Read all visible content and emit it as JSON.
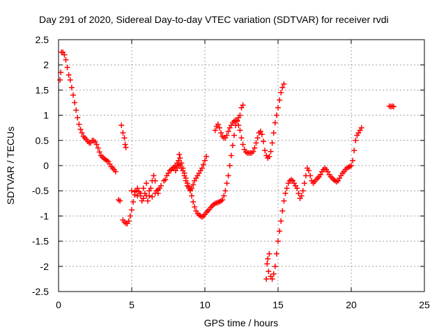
{
  "chart_data": {
    "type": "scatter",
    "title": "Day 291 of 2020, Sidereal Day-to-day VTEC variation (SDTVAR) for receiver rvdi",
    "xlabel": "GPS time / hours",
    "ylabel": "SDTVAR / TECUs",
    "xlim": [
      0,
      25
    ],
    "ylim": [
      -2.5,
      2.5
    ],
    "x_ticks": [
      0,
      5,
      10,
      15,
      20,
      25
    ],
    "y_ticks": [
      -2.5,
      -2,
      -1.5,
      -1,
      -0.5,
      0,
      0.5,
      1,
      1.5,
      2,
      2.5
    ],
    "x_tick_labels": [
      "0",
      "5",
      "10",
      "15",
      "20",
      "25"
    ],
    "y_tick_labels": [
      "-2.5",
      "-2",
      "-1.5",
      "-1",
      "-0.5",
      "0",
      "0.5",
      "1",
      "1.5",
      "2",
      "2.5"
    ],
    "grid": true,
    "marker": "+",
    "color": "#ff0000",
    "series": [
      {
        "points": [
          [
            0.1,
            1.7
          ],
          [
            0.15,
            1.85
          ],
          [
            0.2,
            2.25
          ],
          [
            0.3,
            2.25
          ],
          [
            0.4,
            2.2
          ],
          [
            0.5,
            2.1
          ],
          [
            0.6,
            1.95
          ],
          [
            0.7,
            1.8
          ],
          [
            0.8,
            1.7
          ],
          [
            0.9,
            1.55
          ],
          [
            1.0,
            1.4
          ],
          [
            1.1,
            1.25
          ],
          [
            1.2,
            1.1
          ],
          [
            1.3,
            0.95
          ],
          [
            1.4,
            0.82
          ],
          [
            1.5,
            0.72
          ],
          [
            1.6,
            0.65
          ],
          [
            1.7,
            0.58
          ],
          [
            1.8,
            0.55
          ],
          [
            1.9,
            0.52
          ],
          [
            2.0,
            0.48
          ],
          [
            2.1,
            0.45
          ],
          [
            2.2,
            0.45
          ],
          [
            2.3,
            0.5
          ],
          [
            2.4,
            0.5
          ],
          [
            2.5,
            0.47
          ],
          [
            2.6,
            0.42
          ],
          [
            2.7,
            0.35
          ],
          [
            2.8,
            0.27
          ],
          [
            2.9,
            0.2
          ],
          [
            3.0,
            0.17
          ],
          [
            3.1,
            0.14
          ],
          [
            3.2,
            0.12
          ],
          [
            3.3,
            0.1
          ],
          [
            3.4,
            0.08
          ],
          [
            3.5,
            0.03
          ],
          [
            3.6,
            -0.02
          ],
          [
            3.7,
            -0.05
          ],
          [
            3.8,
            -0.08
          ],
          [
            3.9,
            -0.12
          ],
          [
            4.1,
            -0.68
          ],
          [
            4.2,
            -0.7
          ],
          [
            4.3,
            0.8
          ],
          [
            4.4,
            0.65
          ],
          [
            4.5,
            0.55
          ],
          [
            4.55,
            0.42
          ],
          [
            4.6,
            0.36
          ],
          [
            4.4,
            -1.08
          ],
          [
            4.5,
            -1.12
          ],
          [
            4.6,
            -1.15
          ],
          [
            4.7,
            -1.15
          ],
          [
            4.8,
            -1.1
          ],
          [
            4.9,
            -1.0
          ],
          [
            5.0,
            -0.88
          ],
          [
            5.1,
            -0.72
          ],
          [
            5.2,
            -0.58
          ],
          [
            5.3,
            -0.5
          ],
          [
            5.4,
            -0.45
          ],
          [
            5.5,
            -0.52
          ],
          [
            5.6,
            -0.6
          ],
          [
            5.7,
            -0.7
          ],
          [
            5.8,
            -0.65
          ],
          [
            5.9,
            -0.55
          ],
          [
            6.0,
            -0.6
          ],
          [
            6.1,
            -0.7
          ],
          [
            6.2,
            -0.6
          ],
          [
            6.3,
            -0.45
          ],
          [
            6.4,
            -0.3
          ],
          [
            6.5,
            -0.2
          ],
          [
            6.6,
            -0.3
          ],
          [
            6.7,
            -0.5
          ],
          [
            6.8,
            -0.55
          ],
          [
            6.9,
            -0.45
          ],
          [
            7.0,
            -0.4
          ],
          [
            5.0,
            -0.5
          ],
          [
            5.2,
            -0.52
          ],
          [
            5.4,
            -0.6
          ],
          [
            5.6,
            -0.55
          ],
          [
            5.8,
            -0.45
          ],
          [
            6.0,
            -0.35
          ],
          [
            6.2,
            -0.5
          ],
          [
            6.4,
            -0.62
          ],
          [
            6.6,
            -0.55
          ],
          [
            6.8,
            -0.48
          ],
          [
            7.2,
            -0.3
          ],
          [
            7.3,
            -0.28
          ],
          [
            7.4,
            -0.2
          ],
          [
            7.5,
            -0.15
          ],
          [
            7.6,
            -0.1
          ],
          [
            7.7,
            -0.08
          ],
          [
            7.8,
            -0.05
          ],
          [
            7.9,
            -0.03
          ],
          [
            8.0,
            0.0
          ],
          [
            8.1,
            0.05
          ],
          [
            8.2,
            0.1
          ],
          [
            8.25,
            0.22
          ],
          [
            8.3,
            0.15
          ],
          [
            8.4,
            0.05
          ],
          [
            8.5,
            -0.05
          ],
          [
            8.6,
            -0.15
          ],
          [
            8.7,
            -0.25
          ],
          [
            8.8,
            -0.35
          ],
          [
            8.9,
            -0.42
          ],
          [
            9.0,
            -0.5
          ],
          [
            9.1,
            -0.6
          ],
          [
            9.2,
            -0.72
          ],
          [
            9.3,
            -0.82
          ],
          [
            9.4,
            -0.9
          ],
          [
            9.5,
            -0.95
          ],
          [
            9.6,
            -0.98
          ],
          [
            9.7,
            -1.0
          ],
          [
            9.8,
            -1.02
          ],
          [
            9.9,
            -1.0
          ],
          [
            10.0,
            -0.97
          ],
          [
            10.1,
            -0.93
          ],
          [
            10.2,
            -0.9
          ],
          [
            10.3,
            -0.87
          ],
          [
            10.4,
            -0.83
          ],
          [
            10.5,
            -0.8
          ],
          [
            10.6,
            -0.77
          ],
          [
            10.7,
            -0.75
          ],
          [
            10.8,
            -0.74
          ],
          [
            10.9,
            -0.73
          ],
          [
            11.0,
            -0.72
          ],
          [
            11.1,
            -0.7
          ],
          [
            11.2,
            -0.68
          ],
          [
            11.3,
            -0.6
          ],
          [
            11.4,
            -0.5
          ],
          [
            11.5,
            -0.35
          ],
          [
            11.6,
            -0.2
          ],
          [
            11.7,
            0.0
          ],
          [
            11.8,
            0.2
          ],
          [
            11.9,
            0.4
          ],
          [
            12.0,
            0.6
          ],
          [
            12.1,
            0.8
          ],
          [
            12.2,
            0.9
          ],
          [
            12.3,
            0.95
          ],
          [
            12.4,
            1.0
          ],
          [
            12.5,
            1.15
          ],
          [
            12.6,
            1.2
          ],
          [
            8.0,
            -0.1
          ],
          [
            8.1,
            -0.05
          ],
          [
            8.2,
            0.0
          ],
          [
            8.3,
            0.02
          ],
          [
            8.4,
            -0.05
          ],
          [
            8.5,
            -0.1
          ],
          [
            8.6,
            -0.2
          ],
          [
            8.7,
            -0.3
          ],
          [
            8.8,
            -0.4
          ],
          [
            8.9,
            -0.45
          ],
          [
            9.0,
            -0.48
          ],
          [
            9.1,
            -0.45
          ],
          [
            9.2,
            -0.38
          ],
          [
            9.3,
            -0.3
          ],
          [
            9.4,
            -0.25
          ],
          [
            9.5,
            -0.2
          ],
          [
            9.6,
            -0.15
          ],
          [
            9.7,
            -0.1
          ],
          [
            9.8,
            -0.05
          ],
          [
            9.9,
            0.02
          ],
          [
            10.0,
            0.1
          ],
          [
            10.1,
            0.18
          ],
          [
            10.7,
            0.7
          ],
          [
            10.8,
            0.78
          ],
          [
            10.9,
            0.82
          ],
          [
            11.0,
            0.75
          ],
          [
            11.1,
            0.65
          ],
          [
            11.2,
            0.58
          ],
          [
            11.3,
            0.55
          ],
          [
            11.4,
            0.55
          ],
          [
            11.5,
            0.6
          ],
          [
            11.6,
            0.68
          ],
          [
            11.7,
            0.75
          ],
          [
            11.8,
            0.8
          ],
          [
            11.9,
            0.85
          ],
          [
            12.0,
            0.88
          ],
          [
            12.1,
            0.9
          ],
          [
            12.2,
            0.88
          ],
          [
            12.3,
            0.8
          ],
          [
            12.4,
            0.7
          ],
          [
            12.5,
            0.55
          ],
          [
            12.6,
            0.42
          ],
          [
            12.7,
            0.32
          ],
          [
            12.8,
            0.27
          ],
          [
            12.9,
            0.25
          ],
          [
            13.0,
            0.25
          ],
          [
            13.1,
            0.25
          ],
          [
            13.2,
            0.25
          ],
          [
            13.3,
            0.28
          ],
          [
            13.4,
            0.35
          ],
          [
            13.5,
            0.45
          ],
          [
            13.6,
            0.55
          ],
          [
            13.7,
            0.65
          ],
          [
            13.8,
            0.68
          ],
          [
            13.9,
            0.62
          ],
          [
            14.0,
            0.48
          ],
          [
            14.1,
            0.3
          ],
          [
            14.2,
            0.2
          ],
          [
            14.3,
            0.15
          ],
          [
            14.4,
            0.18
          ],
          [
            14.5,
            0.28
          ],
          [
            14.6,
            0.45
          ],
          [
            14.7,
            0.65
          ],
          [
            14.8,
            0.85
          ],
          [
            14.9,
            1.0
          ],
          [
            15.0,
            1.15
          ],
          [
            15.1,
            1.3
          ],
          [
            15.2,
            1.45
          ],
          [
            15.3,
            1.55
          ],
          [
            15.4,
            1.62
          ],
          [
            14.2,
            -2.25
          ],
          [
            14.25,
            -1.95
          ],
          [
            14.3,
            -1.85
          ],
          [
            14.35,
            -2.1
          ],
          [
            14.4,
            -1.75
          ],
          [
            14.5,
            -2.2
          ],
          [
            14.6,
            -2.25
          ],
          [
            14.7,
            -2.15
          ],
          [
            14.8,
            -2.0
          ],
          [
            14.9,
            -1.75
          ],
          [
            15.0,
            -1.5
          ],
          [
            15.1,
            -1.3
          ],
          [
            15.2,
            -1.1
          ],
          [
            15.3,
            -0.9
          ],
          [
            15.4,
            -0.7
          ],
          [
            15.5,
            -0.55
          ],
          [
            15.6,
            -0.45
          ],
          [
            15.7,
            -0.35
          ],
          [
            15.8,
            -0.3
          ],
          [
            15.9,
            -0.28
          ],
          [
            16.0,
            -0.3
          ],
          [
            16.1,
            -0.35
          ],
          [
            16.2,
            -0.4
          ],
          [
            16.3,
            -0.45
          ],
          [
            16.4,
            -0.55
          ],
          [
            16.5,
            -0.65
          ],
          [
            16.6,
            -0.6
          ],
          [
            16.7,
            -0.5
          ],
          [
            16.8,
            -0.35
          ],
          [
            16.9,
            -0.2
          ],
          [
            17.0,
            -0.05
          ],
          [
            17.1,
            -0.1
          ],
          [
            17.2,
            -0.2
          ],
          [
            17.3,
            -0.3
          ],
          [
            17.4,
            -0.35
          ],
          [
            17.5,
            -0.32
          ],
          [
            17.6,
            -0.28
          ],
          [
            17.7,
            -0.25
          ],
          [
            17.8,
            -0.22
          ],
          [
            17.9,
            -0.18
          ],
          [
            18.0,
            -0.12
          ],
          [
            18.1,
            -0.08
          ],
          [
            18.2,
            -0.05
          ],
          [
            18.3,
            -0.08
          ],
          [
            18.4,
            -0.12
          ],
          [
            18.5,
            -0.18
          ],
          [
            18.6,
            -0.22
          ],
          [
            18.7,
            -0.25
          ],
          [
            18.8,
            -0.28
          ],
          [
            18.9,
            -0.3
          ],
          [
            19.0,
            -0.32
          ],
          [
            19.1,
            -0.3
          ],
          [
            19.2,
            -0.25
          ],
          [
            19.3,
            -0.2
          ],
          [
            19.4,
            -0.15
          ],
          [
            19.5,
            -0.12
          ],
          [
            19.6,
            -0.08
          ],
          [
            19.7,
            -0.05
          ],
          [
            19.8,
            -0.03
          ],
          [
            19.9,
            -0.02
          ],
          [
            20.0,
            0.0
          ],
          [
            20.1,
            0.1
          ],
          [
            20.2,
            0.3
          ],
          [
            20.3,
            0.5
          ],
          [
            20.4,
            0.6
          ],
          [
            20.5,
            0.65
          ],
          [
            20.6,
            0.7
          ],
          [
            20.7,
            0.75
          ],
          [
            22.6,
            1.18
          ],
          [
            22.7,
            1.17
          ],
          [
            22.8,
            1.18
          ],
          [
            22.9,
            1.17
          ]
        ]
      }
    ]
  }
}
